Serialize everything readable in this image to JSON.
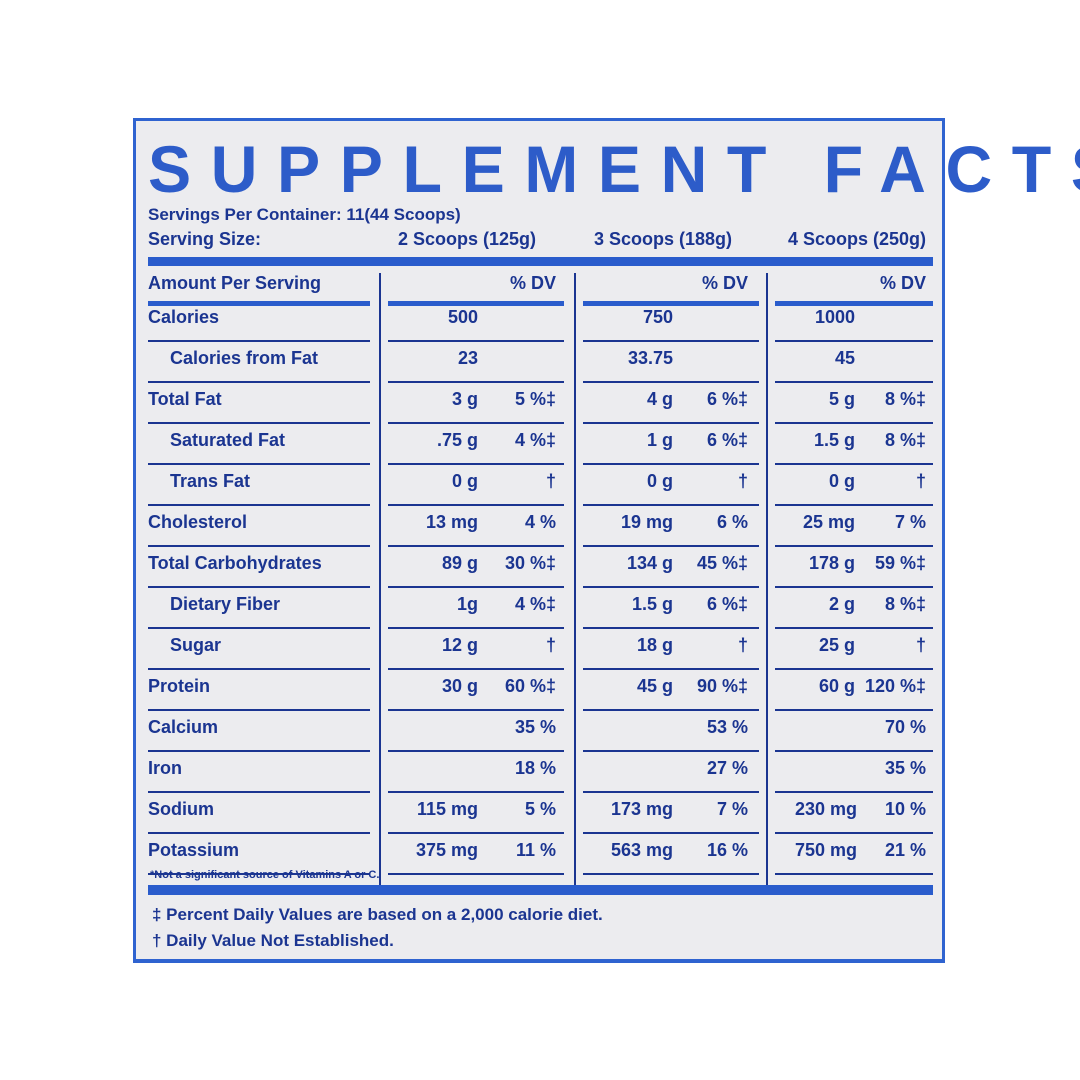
{
  "title": "SUPPLEMENT FACTS",
  "servings_per_container": "Servings Per Container: 11(44 Scoops)",
  "serving_size_label": "Serving Size:",
  "serving_sizes": [
    "2 Scoops (125g)",
    "3 Scoops (188g)",
    "4 Scoops (250g)"
  ],
  "amount_per_serving": "Amount Per Serving",
  "dv_header": "% DV",
  "rows": [
    {
      "label": "Calories",
      "indent": false,
      "values": [
        [
          "500",
          ""
        ],
        [
          "750",
          ""
        ],
        [
          "1000",
          ""
        ]
      ]
    },
    {
      "label": "Calories from Fat",
      "indent": true,
      "values": [
        [
          "23",
          ""
        ],
        [
          "33.75",
          ""
        ],
        [
          "45",
          ""
        ]
      ]
    },
    {
      "label": "Total Fat",
      "indent": false,
      "values": [
        [
          "3 g",
          "5 %‡"
        ],
        [
          "4 g",
          "6 %‡"
        ],
        [
          "5 g",
          "8 %‡"
        ]
      ]
    },
    {
      "label": "Saturated Fat",
      "indent": true,
      "values": [
        [
          ".75 g",
          "4 %‡"
        ],
        [
          "1 g",
          "6 %‡"
        ],
        [
          "1.5 g",
          "8 %‡"
        ]
      ]
    },
    {
      "label": "Trans Fat",
      "indent": true,
      "values": [
        [
          "0 g",
          "†"
        ],
        [
          "0 g",
          "†"
        ],
        [
          "0 g",
          "†"
        ]
      ]
    },
    {
      "label": "Cholesterol",
      "indent": false,
      "values": [
        [
          "13 mg",
          "4 %"
        ],
        [
          "19 mg",
          "6 %"
        ],
        [
          "25 mg",
          "7 %"
        ]
      ]
    },
    {
      "label": "Total Carbohydrates",
      "indent": false,
      "values": [
        [
          "89 g",
          "30 %‡"
        ],
        [
          "134 g",
          "45 %‡"
        ],
        [
          "178 g",
          "59 %‡"
        ]
      ]
    },
    {
      "label": "Dietary Fiber",
      "indent": true,
      "values": [
        [
          "1g",
          "4 %‡"
        ],
        [
          "1.5 g",
          "6 %‡"
        ],
        [
          "2 g",
          "8 %‡"
        ]
      ]
    },
    {
      "label": "Sugar",
      "indent": true,
      "values": [
        [
          "12 g",
          "†"
        ],
        [
          "18 g",
          "†"
        ],
        [
          "25 g",
          "†"
        ]
      ]
    },
    {
      "label": "Protein",
      "indent": false,
      "values": [
        [
          "30 g",
          "60 %‡"
        ],
        [
          "45 g",
          "90 %‡"
        ],
        [
          "60 g",
          "120 %‡"
        ]
      ]
    },
    {
      "label": "Calcium",
      "indent": false,
      "values": [
        [
          "",
          "35 %"
        ],
        [
          "",
          "53 %"
        ],
        [
          "",
          "70 %"
        ]
      ]
    },
    {
      "label": "Iron",
      "indent": false,
      "values": [
        [
          "",
          "18 %"
        ],
        [
          "",
          "27 %"
        ],
        [
          "",
          "35 %"
        ]
      ]
    },
    {
      "label": "Sodium",
      "indent": false,
      "values": [
        [
          "115 mg",
          "5 %"
        ],
        [
          "173 mg",
          "7 %"
        ],
        [
          "230 mg",
          "10 %"
        ]
      ]
    },
    {
      "label": "Potassium",
      "indent": false,
      "values": [
        [
          "375 mg",
          "11 %"
        ],
        [
          "563 mg",
          "16 %"
        ],
        [
          "750 mg",
          "21 %"
        ]
      ]
    }
  ],
  "vitamin_note": "*Not a significant source of Vitamins A or C.",
  "footnotes": [
    "‡ Percent Daily Values are based on a 2,000 calorie diet.",
    "† Daily Value Not Established."
  ],
  "colors": {
    "title": "#2d5cc9",
    "text": "#1b3591",
    "rule": "#2a5ccc",
    "panel": "#ececef"
  }
}
